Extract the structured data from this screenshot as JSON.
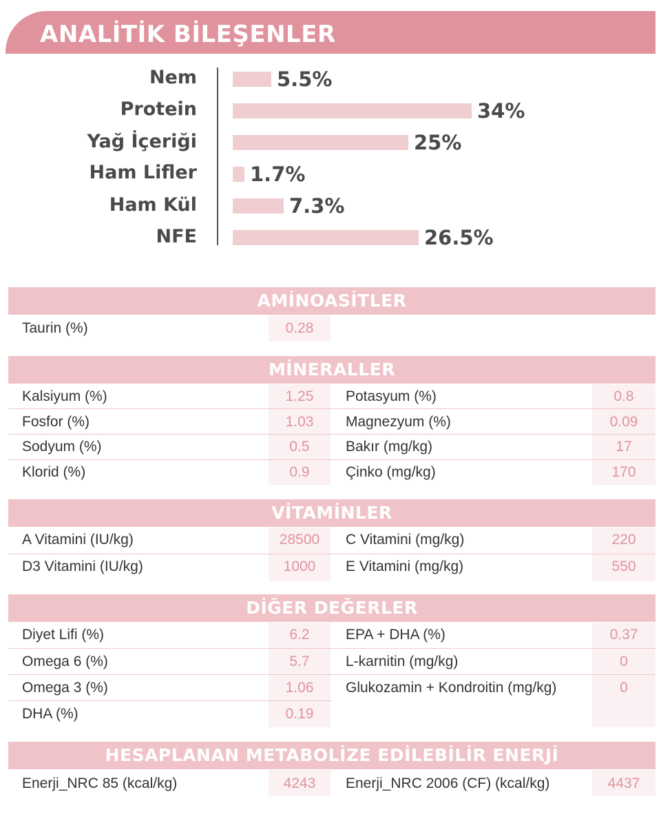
{
  "header": {
    "title": "ANALİTİK BİLEŞENLER"
  },
  "analysis": [
    {
      "label": "Nem",
      "value_label": "5.5%",
      "value": 5.5
    },
    {
      "label": "Protein",
      "value_label": "34%",
      "value": 34
    },
    {
      "label": "Yağ İçeriği",
      "value_label": "25%",
      "value": 25
    },
    {
      "label": "Ham Lifler",
      "value_label": "1.7%",
      "value": 1.7
    },
    {
      "label": "Ham Kül",
      "value_label": "7.3%",
      "value": 7.3
    },
    {
      "label": "NFE",
      "value_label": "26.5%",
      "value": 26.5
    }
  ],
  "sections": {
    "aminoasitler": {
      "title": "AMİNOASİTLER",
      "left": [
        {
          "name": "Taurin (%)",
          "value": "0.28"
        }
      ]
    },
    "mineraller": {
      "title": "MİNERALLER",
      "left": [
        {
          "name": "Kalsiyum (%)",
          "value": "1.25"
        },
        {
          "name": "Fosfor (%)",
          "value": "1.03"
        },
        {
          "name": "Sodyum (%)",
          "value": "0.5"
        },
        {
          "name": "Klorid (%)",
          "value": "0.9"
        }
      ],
      "right": [
        {
          "name": "Potasyum (%)",
          "value": "0.8"
        },
        {
          "name": "Magnezyum (%)",
          "value": "0.09"
        },
        {
          "name": "Bakır (mg/kg)",
          "value": "17"
        },
        {
          "name": "Çinko (mg/kg)",
          "value": "170"
        }
      ]
    },
    "vitaminler": {
      "title": "VİTAMİNLER",
      "left": [
        {
          "name": "A Vitamini (IU/kg)",
          "value": "28500"
        },
        {
          "name": "D3 Vitamini (IU/kg)",
          "value": "1000"
        }
      ],
      "right": [
        {
          "name": "C Vitamini (mg/kg)",
          "value": "220"
        },
        {
          "name": "E Vitamini (mg/kg)",
          "value": "550"
        }
      ]
    },
    "diger": {
      "title": "DİĞER DEĞERLER",
      "left": [
        {
          "name": "Diyet Lifi (%)",
          "value": "6.2"
        },
        {
          "name": "Omega 6 (%)",
          "value": "5.7"
        },
        {
          "name": "Omega 3 (%)",
          "value": "1.06"
        },
        {
          "name": "DHA (%)",
          "value": "0.19"
        }
      ],
      "right": [
        {
          "name": "EPA + DHA (%)",
          "value": "0.37"
        },
        {
          "name": "L-karnitin (mg/kg)",
          "value": "0"
        },
        {
          "name": "Glukozamin + Kondroitin (mg/kg)",
          "value": "0"
        }
      ]
    },
    "enerji": {
      "title": "HESAPLANAN METABOLİZE EDİLEBİLİR ENERJİ",
      "left": [
        {
          "name": "Enerji_NRC 85 (kcal/kg)",
          "value": "4243"
        }
      ],
      "right": [
        {
          "name": "Enerji_NRC 2006 (CF) (kcal/kg)",
          "value": "4437"
        }
      ]
    }
  },
  "colors": {
    "accent": "#e0939d",
    "section_bg": "#efc3c8",
    "bar": "#f0cdd0"
  }
}
